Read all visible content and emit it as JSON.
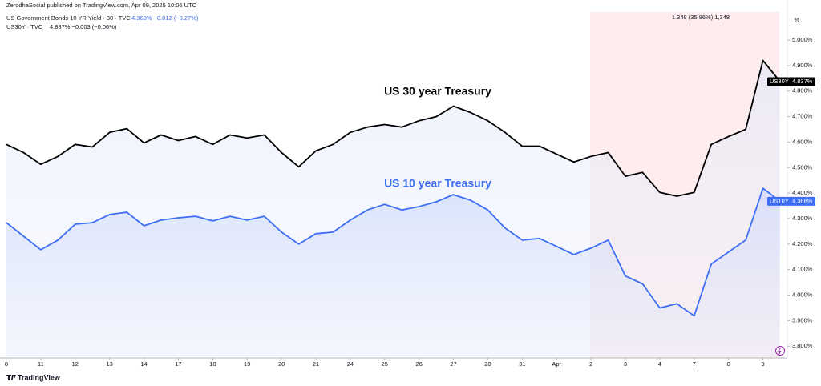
{
  "header": {
    "publisher": "ZerodhaSocial published on TradingView.com, Apr 09, 2025 10:06 UTC",
    "line1": {
      "symbol": "US Government Bonds 10 YR Yield · 30 · TVC",
      "quote": "4.368%  −0.012 (−0.27%)"
    },
    "line2": {
      "symbol": "US30Y · TVC",
      "quote": "4.837%  −0.003 (−0.06%)"
    }
  },
  "footer": {
    "brand": "TradingView"
  },
  "measure_label": "1.348 (35.86%) 1,348",
  "chart_data": {
    "type": "line",
    "axis_unit": "%",
    "annotations": [
      {
        "text": "US 30 year Treasury",
        "series": 0
      },
      {
        "text": "US 10 year Treasury",
        "series": 1
      }
    ],
    "x": [
      0,
      0.5,
      1,
      1.5,
      2,
      2.5,
      3,
      3.5,
      4,
      4.5,
      5,
      5.5,
      6,
      6.5,
      7,
      7.5,
      8,
      8.5,
      9,
      9.5,
      10,
      10.5,
      11,
      11.5,
      12,
      12.5,
      13,
      13.5,
      14,
      14.5,
      15,
      15.5,
      16,
      16.5,
      17,
      17.5,
      18,
      18.5,
      19,
      19.5,
      20,
      20.5,
      21,
      21.5,
      22,
      22.5
    ],
    "xlim": [
      0,
      22.5
    ],
    "xticks": [
      {
        "value": 0,
        "label": "0"
      },
      {
        "value": 1,
        "label": "11"
      },
      {
        "value": 2,
        "label": "12"
      },
      {
        "value": 3,
        "label": "13"
      },
      {
        "value": 4,
        "label": "14"
      },
      {
        "value": 5,
        "label": "17"
      },
      {
        "value": 6,
        "label": "18"
      },
      {
        "value": 7,
        "label": "19"
      },
      {
        "value": 8,
        "label": "20"
      },
      {
        "value": 9,
        "label": "21"
      },
      {
        "value": 10,
        "label": "24"
      },
      {
        "value": 11,
        "label": "25"
      },
      {
        "value": 12,
        "label": "26"
      },
      {
        "value": 13,
        "label": "27"
      },
      {
        "value": 14,
        "label": "28"
      },
      {
        "value": 15,
        "label": "31"
      },
      {
        "value": 16,
        "label": "Apr"
      },
      {
        "value": 17,
        "label": "2"
      },
      {
        "value": 18,
        "label": "3"
      },
      {
        "value": 19,
        "label": "4"
      },
      {
        "value": 20,
        "label": "7"
      },
      {
        "value": 21,
        "label": "8"
      },
      {
        "value": 22,
        "label": "9"
      }
    ],
    "ylim": [
      3.76,
      5.11
    ],
    "yticks": [
      {
        "value": 3.8,
        "label": "3.800%"
      },
      {
        "value": 3.9,
        "label": "3.900%"
      },
      {
        "value": 4.0,
        "label": "4.000%"
      },
      {
        "value": 4.1,
        "label": "4.100%"
      },
      {
        "value": 4.2,
        "label": "4.200%"
      },
      {
        "value": 4.3,
        "label": "4.300%"
      },
      {
        "value": 4.4,
        "label": "4.400%"
      },
      {
        "value": 4.5,
        "label": "4.500%"
      },
      {
        "value": 4.6,
        "label": "4.600%"
      },
      {
        "value": 4.7,
        "label": "4.700%"
      },
      {
        "value": 4.8,
        "label": "4.800%"
      },
      {
        "value": 4.9,
        "label": "4.900%"
      },
      {
        "value": 5.0,
        "label": "5.000%"
      }
    ],
    "series": [
      {
        "name": "US30Y",
        "color": "#000000",
        "last_label": "4.837%",
        "values": [
          4.591,
          4.559,
          4.513,
          4.544,
          4.591,
          4.581,
          4.638,
          4.653,
          4.597,
          4.628,
          4.606,
          4.622,
          4.591,
          4.628,
          4.616,
          4.628,
          4.559,
          4.503,
          4.566,
          4.591,
          4.638,
          4.659,
          4.669,
          4.659,
          4.684,
          4.7,
          4.741,
          4.716,
          4.684,
          4.638,
          4.584,
          4.584,
          4.553,
          4.522,
          4.544,
          4.559,
          4.466,
          4.481,
          4.403,
          4.388,
          4.403,
          4.591,
          4.622,
          4.65,
          4.92,
          4.837
        ]
      },
      {
        "name": "US10Y",
        "color": "#3d6ef5",
        "last_label": "4.368%",
        "values": [
          4.284,
          4.231,
          4.178,
          4.216,
          4.278,
          4.284,
          4.316,
          4.325,
          4.272,
          4.294,
          4.303,
          4.309,
          4.291,
          4.309,
          4.294,
          4.309,
          4.247,
          4.2,
          4.241,
          4.247,
          4.294,
          4.334,
          4.356,
          4.334,
          4.347,
          4.366,
          4.394,
          4.372,
          4.334,
          4.263,
          4.216,
          4.222,
          4.191,
          4.159,
          4.184,
          4.216,
          4.075,
          4.044,
          3.95,
          3.966,
          3.919,
          4.122,
          4.169,
          4.216,
          4.419,
          4.368
        ]
      }
    ]
  }
}
